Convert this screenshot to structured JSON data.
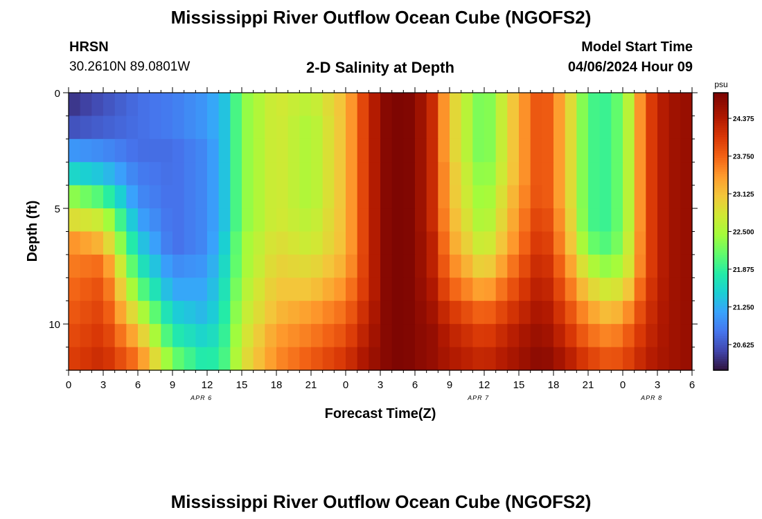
{
  "header": {
    "title": "Mississippi River Outflow Ocean Cube (NGOFS2)",
    "station": "HRSN",
    "coords": "30.2610N  89.0801W",
    "subtitle": "2-D Salinity at Depth",
    "model_start_label": "Model Start Time",
    "model_start_value": "04/06/2024 Hour 09"
  },
  "footer": {
    "title": "Mississippi River Outflow Ocean Cube (NGOFS2)"
  },
  "chart_data": {
    "type": "heatmap",
    "title": "2-D Salinity at Depth",
    "xlabel": "Forecast Time(Z)",
    "ylabel": "Depth (ft)",
    "x_hours": [
      0,
      54
    ],
    "x_tick_labels": [
      "0",
      "3",
      "6",
      "9",
      "12",
      "15",
      "18",
      "21",
      "0",
      "3",
      "6",
      "9",
      "12",
      "15",
      "18",
      "21",
      "0",
      "3",
      "6"
    ],
    "date_labels": [
      {
        "text": "APR 6",
        "hour": 11.5
      },
      {
        "text": "APR 7",
        "hour": 35.5
      },
      {
        "text": "APR 8",
        "hour": 50.5
      }
    ],
    "y_range_ft": [
      0,
      12
    ],
    "y_ticks": [
      0,
      5,
      10
    ],
    "y_tick_labels": [
      "0",
      "5",
      "10"
    ],
    "colorbar": {
      "units": "psu",
      "range": [
        20.2,
        24.8
      ],
      "ticks": [
        20.625,
        21.25,
        21.875,
        22.5,
        23.125,
        23.75,
        24.375
      ],
      "tick_labels": [
        "20.625",
        "21.250",
        "21.875",
        "22.500",
        "23.125",
        "23.750",
        "24.375"
      ],
      "colormap": "turbo"
    },
    "depth_layers_ft": [
      0.5,
      1.5,
      2.5,
      3.5,
      4.5,
      5.5,
      6.5,
      7.5,
      8.5,
      9.5,
      10.5,
      11.5
    ],
    "time_anchors_hours": [
      0,
      3,
      6,
      9,
      12,
      13.5,
      15,
      18,
      21,
      24,
      26,
      27.5,
      29,
      30,
      31.5,
      33,
      36,
      39,
      41,
      43,
      45,
      47,
      48.5,
      50,
      52,
      54
    ],
    "salinity_grid_psu": [
      [
        20.4,
        20.6,
        20.8,
        20.9,
        21.1,
        21.4,
        22.3,
        22.8,
        22.6,
        23.2,
        24.2,
        24.7,
        24.8,
        24.7,
        24.2,
        23.1,
        22.1,
        23.3,
        24.0,
        23.2,
        22.0,
        21.9,
        22.6,
        23.9,
        24.5,
        24.6
      ],
      [
        20.6,
        20.7,
        20.8,
        20.9,
        21.1,
        21.4,
        22.3,
        22.8,
        22.5,
        23.2,
        24.2,
        24.7,
        24.8,
        24.7,
        24.2,
        23.1,
        22.1,
        23.3,
        24.0,
        23.2,
        22.0,
        21.9,
        22.6,
        23.9,
        24.5,
        24.6
      ],
      [
        21.1,
        21.0,
        20.8,
        20.8,
        21.0,
        21.4,
        22.3,
        22.8,
        22.5,
        23.2,
        24.2,
        24.7,
        24.8,
        24.7,
        24.2,
        23.1,
        22.1,
        23.3,
        24.0,
        23.2,
        22.0,
        21.9,
        22.6,
        23.9,
        24.5,
        24.6
      ],
      [
        21.6,
        21.4,
        20.9,
        20.8,
        21.0,
        21.4,
        22.3,
        22.8,
        22.5,
        23.2,
        24.2,
        24.7,
        24.8,
        24.7,
        24.2,
        23.2,
        22.2,
        23.3,
        24.0,
        23.2,
        22.0,
        21.9,
        22.6,
        23.9,
        24.5,
        24.6
      ],
      [
        22.4,
        22.0,
        21.0,
        20.8,
        21.0,
        21.4,
        22.3,
        22.8,
        22.5,
        23.2,
        24.2,
        24.7,
        24.8,
        24.7,
        24.2,
        23.2,
        22.3,
        23.4,
        24.0,
        23.2,
        22.0,
        21.9,
        22.6,
        23.9,
        24.5,
        24.6
      ],
      [
        22.9,
        22.7,
        21.2,
        20.8,
        21.0,
        21.4,
        22.3,
        22.8,
        22.6,
        23.2,
        24.2,
        24.7,
        24.8,
        24.7,
        24.2,
        23.3,
        22.4,
        23.5,
        24.1,
        23.3,
        22.0,
        21.9,
        22.6,
        23.9,
        24.5,
        24.6
      ],
      [
        23.5,
        23.2,
        21.5,
        20.8,
        21.0,
        21.5,
        22.4,
        22.9,
        22.7,
        23.2,
        24.2,
        24.7,
        24.8,
        24.7,
        24.3,
        23.4,
        22.6,
        23.6,
        24.2,
        23.4,
        22.2,
        22.0,
        22.7,
        23.9,
        24.5,
        24.6
      ],
      [
        23.6,
        23.7,
        21.8,
        21.0,
        21.1,
        21.6,
        22.4,
        23.0,
        22.9,
        23.3,
        24.2,
        24.7,
        24.8,
        24.7,
        24.3,
        23.6,
        22.9,
        23.8,
        24.3,
        23.6,
        22.6,
        22.3,
        22.8,
        23.9,
        24.5,
        24.6
      ],
      [
        23.7,
        23.9,
        22.2,
        21.2,
        21.2,
        21.7,
        22.5,
        23.1,
        23.1,
        23.5,
        24.2,
        24.7,
        24.8,
        24.7,
        24.4,
        23.8,
        23.3,
        24.0,
        24.4,
        23.8,
        23.0,
        22.7,
        23.1,
        24.0,
        24.5,
        24.6
      ],
      [
        23.8,
        24.0,
        22.7,
        21.5,
        21.3,
        21.8,
        22.6,
        23.2,
        23.4,
        23.7,
        24.3,
        24.7,
        24.8,
        24.7,
        24.5,
        24.1,
        23.7,
        24.2,
        24.5,
        24.0,
        23.4,
        23.1,
        23.5,
        24.1,
        24.5,
        24.6
      ],
      [
        23.9,
        24.1,
        23.2,
        21.8,
        21.5,
        21.9,
        22.7,
        23.4,
        23.6,
        23.9,
        24.4,
        24.7,
        24.8,
        24.7,
        24.6,
        24.3,
        24.0,
        24.4,
        24.6,
        24.2,
        23.7,
        23.5,
        23.8,
        24.2,
        24.5,
        24.6
      ],
      [
        24.0,
        24.2,
        23.6,
        22.2,
        21.7,
        22.0,
        22.8,
        23.5,
        23.8,
        24.1,
        24.5,
        24.7,
        24.8,
        24.7,
        24.6,
        24.4,
        24.2,
        24.5,
        24.7,
        24.4,
        24.0,
        23.8,
        24.0,
        24.3,
        24.5,
        24.6
      ]
    ]
  }
}
